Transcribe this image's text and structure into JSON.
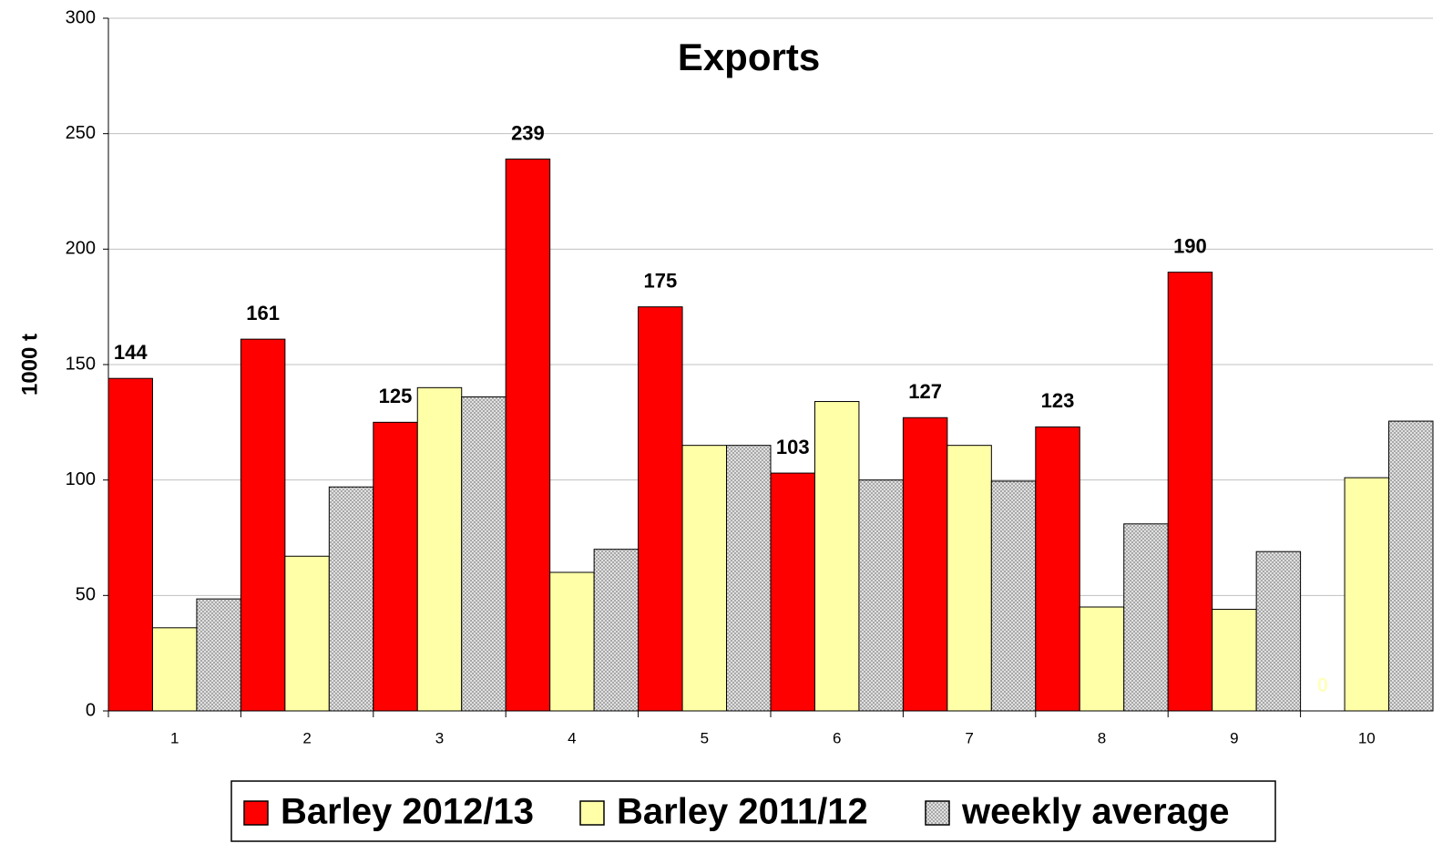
{
  "chart_data": {
    "type": "bar",
    "title": "Exports",
    "y_label": "1000 t",
    "categories": [
      "1",
      "2",
      "3",
      "4",
      "5",
      "6",
      "7",
      "8",
      "9",
      "10"
    ],
    "series": [
      {
        "name": "Barley 2012/13",
        "color": "#ff0000",
        "values": [
          144,
          161,
          125,
          239,
          175,
          103,
          127,
          123,
          190,
          0
        ],
        "label_colors": [
          "#000000",
          "#000000",
          "#000000",
          "#000000",
          "#000000",
          "#000000",
          "#000000",
          "#000000",
          "#000000",
          "#ffffc0"
        ]
      },
      {
        "name": "Barley 2011/12",
        "color": "#ffffa8",
        "values": [
          36,
          67,
          140,
          60,
          115,
          134,
          115,
          45,
          44,
          101
        ]
      },
      {
        "name": "weekly average",
        "color": "#c0c0c0",
        "pattern": "dots",
        "values": [
          48.5,
          97,
          136,
          70,
          115,
          100,
          99.5,
          81,
          69,
          125.5
        ]
      }
    ],
    "ylim": [
      0,
      300
    ],
    "yticks": [
      0,
      50,
      100,
      150,
      200,
      250,
      300
    ],
    "grid": true,
    "legend": "bottom"
  }
}
